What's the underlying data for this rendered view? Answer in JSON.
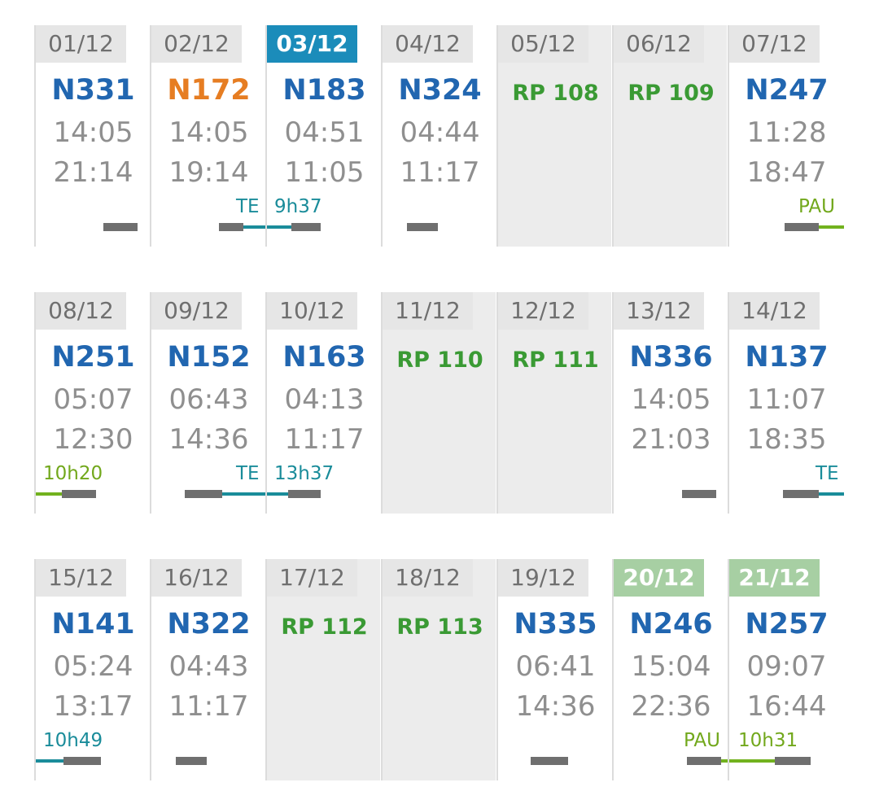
{
  "weeks": [
    {
      "days": [
        {
          "date": "01/12",
          "code": "N331",
          "start": "14:05",
          "end": "21:14"
        },
        {
          "date": "02/12",
          "code": "N172",
          "start": "14:05",
          "end": "19:14",
          "label_right": "TE"
        },
        {
          "date": "03/12",
          "code": "N183",
          "start": "04:51",
          "end": "11:05",
          "label_left": "9h37",
          "is_today": true
        },
        {
          "date": "04/12",
          "code": "N324",
          "start": "04:44",
          "end": "11:17"
        },
        {
          "date": "05/12",
          "code": "RP 108",
          "rest": true
        },
        {
          "date": "06/12",
          "code": "RP 109",
          "rest": true
        },
        {
          "date": "07/12",
          "code": "N247",
          "start": "11:28",
          "end": "18:47",
          "label_right": "PAU"
        }
      ]
    },
    {
      "days": [
        {
          "date": "08/12",
          "code": "N251",
          "start": "05:07",
          "end": "12:30",
          "label_left": "10h20"
        },
        {
          "date": "09/12",
          "code": "N152",
          "start": "06:43",
          "end": "14:36",
          "label_right": "TE"
        },
        {
          "date": "10/12",
          "code": "N163",
          "start": "04:13",
          "end": "11:17",
          "label_left": "13h37"
        },
        {
          "date": "11/12",
          "code": "RP 110",
          "rest": true
        },
        {
          "date": "12/12",
          "code": "RP 111",
          "rest": true
        },
        {
          "date": "13/12",
          "code": "N336",
          "start": "14:05",
          "end": "21:03"
        },
        {
          "date": "14/12",
          "code": "N137",
          "start": "11:07",
          "end": "18:35",
          "label_right": "TE"
        }
      ]
    },
    {
      "days": [
        {
          "date": "15/12",
          "code": "N141",
          "start": "05:24",
          "end": "13:17",
          "label_left": "10h49"
        },
        {
          "date": "16/12",
          "code": "N322",
          "start": "04:43",
          "end": "11:17"
        },
        {
          "date": "17/12",
          "code": "RP 112",
          "rest": true
        },
        {
          "date": "18/12",
          "code": "RP 113",
          "rest": true
        },
        {
          "date": "19/12",
          "code": "N335",
          "start": "06:41",
          "end": "14:36"
        },
        {
          "date": "20/12",
          "code": "N246",
          "start": "15:04",
          "end": "22:36",
          "label_right": "PAU",
          "weekend": true
        },
        {
          "date": "21/12",
          "code": "N257",
          "start": "09:07",
          "end": "16:44",
          "label_left": "10h31",
          "weekend": true
        }
      ]
    }
  ],
  "colors": {
    "shift_code": "#2166b0",
    "shift_code_highlight": "#e67d22",
    "rest_code": "#3a9a34",
    "today": "#1b8cba",
    "weekend": "#a7cfa3",
    "teal_accent": "#1a8c9a",
    "lime_accent": "#72b21e"
  }
}
